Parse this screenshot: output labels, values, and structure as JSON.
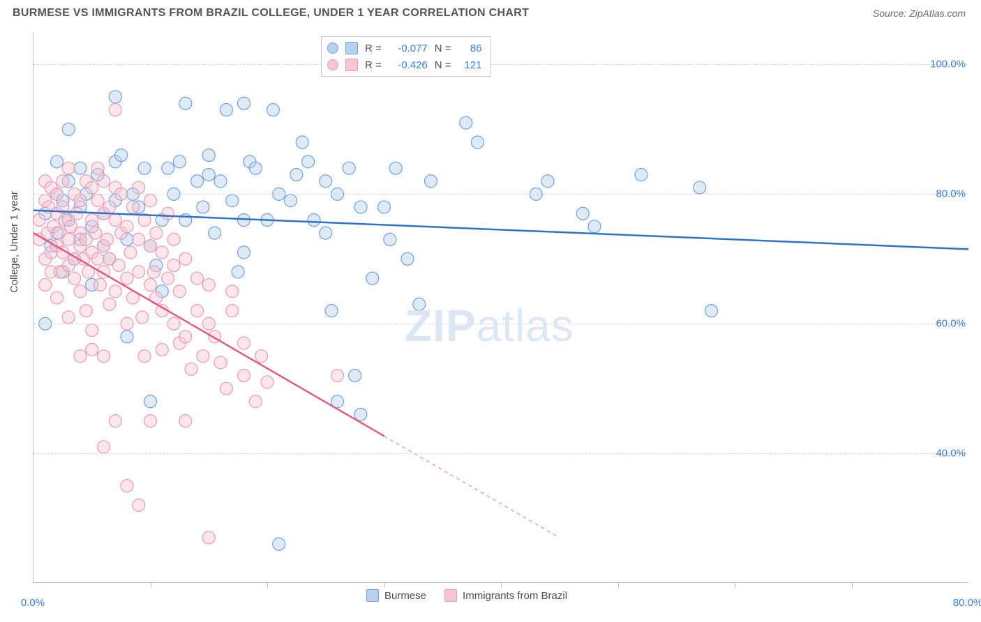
{
  "title": "BURMESE VS IMMIGRANTS FROM BRAZIL COLLEGE, UNDER 1 YEAR CORRELATION CHART",
  "source": "Source: ZipAtlas.com",
  "y_axis_label": "College, Under 1 year",
  "watermark": {
    "zip": "ZIP",
    "atlas": "atlas"
  },
  "chart": {
    "type": "scatter",
    "xlim": [
      0,
      80
    ],
    "ylim": [
      20,
      105
    ],
    "y_ticks": [
      40,
      60,
      80,
      100
    ],
    "y_tick_labels": [
      "40.0%",
      "60.0%",
      "80.0%",
      "100.0%"
    ],
    "x_ticks": [
      0,
      10,
      20,
      30,
      40,
      50,
      60,
      70,
      80
    ],
    "x_tick_labels": [
      "0.0%",
      "",
      "",
      "",
      "",
      "",
      "",
      "",
      "80.0%"
    ],
    "background_color": "#ffffff",
    "grid_color": "#d6d6d6",
    "axis_color": "#bcbcbc",
    "tick_label_color": "#3a7cd6",
    "marker_radius": 9,
    "marker_opacity": 0.45,
    "series": [
      {
        "name": "Burmese",
        "fill": "#b9d0ee",
        "stroke": "#6fa0de",
        "line_color": "#2f72c9",
        "R": "-0.077",
        "N": "86",
        "trend": {
          "x1": 0,
          "y1": 77.5,
          "x2": 80,
          "y2": 71.5,
          "dash_after_x": 80
        },
        "points": [
          [
            1,
            60
          ],
          [
            1,
            77
          ],
          [
            1.5,
            72
          ],
          [
            2,
            80
          ],
          [
            2,
            74
          ],
          [
            2,
            85
          ],
          [
            2.5,
            79
          ],
          [
            2.5,
            68
          ],
          [
            3,
            82
          ],
          [
            3,
            76
          ],
          [
            3,
            90
          ],
          [
            3.5,
            70
          ],
          [
            4,
            78
          ],
          [
            4,
            84
          ],
          [
            4,
            73
          ],
          [
            4.5,
            80
          ],
          [
            5,
            66
          ],
          [
            5,
            75
          ],
          [
            5.5,
            83
          ],
          [
            6,
            77
          ],
          [
            6,
            72
          ],
          [
            6.5,
            70
          ],
          [
            7,
            79
          ],
          [
            7,
            85
          ],
          [
            7.5,
            86
          ],
          [
            8,
            73
          ],
          [
            8,
            58
          ],
          [
            8.5,
            80
          ],
          [
            9,
            78
          ],
          [
            9.5,
            84
          ],
          [
            10,
            48
          ],
          [
            10,
            72
          ],
          [
            10.5,
            69
          ],
          [
            11,
            76
          ],
          [
            11,
            65
          ],
          [
            11.5,
            84
          ],
          [
            12,
            80
          ],
          [
            12.5,
            85
          ],
          [
            13,
            94
          ],
          [
            13,
            76
          ],
          [
            14,
            82
          ],
          [
            14.5,
            78
          ],
          [
            15,
            83
          ],
          [
            15,
            86
          ],
          [
            15.5,
            74
          ],
          [
            16,
            82
          ],
          [
            16.5,
            93
          ],
          [
            17,
            79
          ],
          [
            17.5,
            68
          ],
          [
            18,
            76
          ],
          [
            18.5,
            85
          ],
          [
            18,
            71
          ],
          [
            19,
            84
          ],
          [
            20,
            76
          ],
          [
            20.5,
            93
          ],
          [
            21,
            80
          ],
          [
            21,
            26
          ],
          [
            22,
            79
          ],
          [
            22.5,
            83
          ],
          [
            23,
            88
          ],
          [
            23.5,
            85
          ],
          [
            24,
            76
          ],
          [
            25,
            74
          ],
          [
            25,
            82
          ],
          [
            25.5,
            62
          ],
          [
            26,
            48
          ],
          [
            26,
            80
          ],
          [
            27,
            84
          ],
          [
            27.5,
            52
          ],
          [
            28,
            46
          ],
          [
            28,
            78
          ],
          [
            29,
            67
          ],
          [
            30,
            78
          ],
          [
            30.5,
            73
          ],
          [
            31,
            84
          ],
          [
            32,
            70
          ],
          [
            33,
            63
          ],
          [
            34,
            82
          ],
          [
            37,
            91
          ],
          [
            38,
            88
          ],
          [
            43,
            80
          ],
          [
            48,
            75
          ],
          [
            52,
            83
          ],
          [
            57,
            81
          ],
          [
            58,
            62
          ],
          [
            44,
            82
          ],
          [
            47,
            77
          ],
          [
            7,
            95
          ],
          [
            18,
            94
          ]
        ]
      },
      {
        "name": "Immigrants from Brazil",
        "fill": "#f6c7d3",
        "stroke": "#ea9ab2",
        "line_color": "#e05b82",
        "R": "-0.426",
        "N": "121",
        "trend": {
          "x1": 0,
          "y1": 74,
          "x2": 45,
          "y2": 27,
          "dash_after_x": 30
        },
        "points": [
          [
            0.5,
            73
          ],
          [
            0.5,
            76
          ],
          [
            1,
            70
          ],
          [
            1,
            79
          ],
          [
            1,
            82
          ],
          [
            1,
            66
          ],
          [
            1.2,
            74
          ],
          [
            1.3,
            78
          ],
          [
            1.5,
            71
          ],
          [
            1.5,
            81
          ],
          [
            1.5,
            68
          ],
          [
            1.7,
            75
          ],
          [
            2,
            72
          ],
          [
            2,
            77
          ],
          [
            2,
            64
          ],
          [
            2,
            80
          ],
          [
            2.2,
            74
          ],
          [
            2.3,
            68
          ],
          [
            2.5,
            82
          ],
          [
            2.5,
            71
          ],
          [
            2.5,
            78
          ],
          [
            2.7,
            76
          ],
          [
            3,
            69
          ],
          [
            3,
            73
          ],
          [
            3,
            84
          ],
          [
            3,
            61
          ],
          [
            3.2,
            75
          ],
          [
            3.5,
            70
          ],
          [
            3.5,
            80
          ],
          [
            3.5,
            67
          ],
          [
            3.7,
            77
          ],
          [
            4,
            72
          ],
          [
            4,
            74
          ],
          [
            4,
            65
          ],
          [
            4,
            79
          ],
          [
            4.3,
            70
          ],
          [
            4.5,
            62
          ],
          [
            4.5,
            82
          ],
          [
            4.5,
            73
          ],
          [
            4.7,
            68
          ],
          [
            5,
            76
          ],
          [
            5,
            71
          ],
          [
            5,
            81
          ],
          [
            5,
            59
          ],
          [
            5.3,
            74
          ],
          [
            5.5,
            70
          ],
          [
            5.5,
            79
          ],
          [
            5.5,
            84
          ],
          [
            5.7,
            66
          ],
          [
            6,
            72
          ],
          [
            6,
            77
          ],
          [
            6,
            68
          ],
          [
            6,
            82
          ],
          [
            6.3,
            73
          ],
          [
            6.5,
            63
          ],
          [
            6.5,
            78
          ],
          [
            6.5,
            70
          ],
          [
            7,
            81
          ],
          [
            7,
            65
          ],
          [
            7,
            76
          ],
          [
            7,
            93
          ],
          [
            7.3,
            69
          ],
          [
            7.5,
            74
          ],
          [
            7.5,
            80
          ],
          [
            8,
            67
          ],
          [
            8,
            75
          ],
          [
            8,
            60
          ],
          [
            8.3,
            71
          ],
          [
            8.5,
            78
          ],
          [
            8.5,
            64
          ],
          [
            9,
            73
          ],
          [
            9,
            68
          ],
          [
            9,
            81
          ],
          [
            9.3,
            61
          ],
          [
            9.5,
            76
          ],
          [
            9.5,
            55
          ],
          [
            10,
            72
          ],
          [
            10,
            66
          ],
          [
            10,
            79
          ],
          [
            10.3,
            68
          ],
          [
            10.5,
            64
          ],
          [
            10.5,
            74
          ],
          [
            11,
            56
          ],
          [
            11,
            71
          ],
          [
            11,
            62
          ],
          [
            11.5,
            67
          ],
          [
            11.5,
            77
          ],
          [
            12,
            60
          ],
          [
            12,
            69
          ],
          [
            12,
            73
          ],
          [
            12.5,
            57
          ],
          [
            12.5,
            65
          ],
          [
            13,
            70
          ],
          [
            13,
            58
          ],
          [
            13.5,
            53
          ],
          [
            14,
            62
          ],
          [
            14,
            67
          ],
          [
            14.5,
            55
          ],
          [
            15,
            60
          ],
          [
            15,
            66
          ],
          [
            15.5,
            58
          ],
          [
            16,
            54
          ],
          [
            16.5,
            50
          ],
          [
            17,
            62
          ],
          [
            17,
            65
          ],
          [
            18,
            52
          ],
          [
            18,
            57
          ],
          [
            19,
            48
          ],
          [
            19.5,
            55
          ],
          [
            20,
            51
          ],
          [
            4,
            55
          ],
          [
            5,
            56
          ],
          [
            6,
            55
          ],
          [
            6,
            41
          ],
          [
            7,
            45
          ],
          [
            8,
            35
          ],
          [
            9,
            32
          ],
          [
            10,
            45
          ],
          [
            13,
            45
          ],
          [
            15,
            27
          ],
          [
            26,
            52
          ]
        ]
      }
    ]
  },
  "top_legend": {
    "rows": [
      {
        "R_label": "R =",
        "N_label": "N ="
      },
      {
        "R_label": "R =",
        "N_label": "N ="
      }
    ]
  },
  "bottom_legend": {
    "items": [
      "Burmese",
      "Immigrants from Brazil"
    ]
  }
}
